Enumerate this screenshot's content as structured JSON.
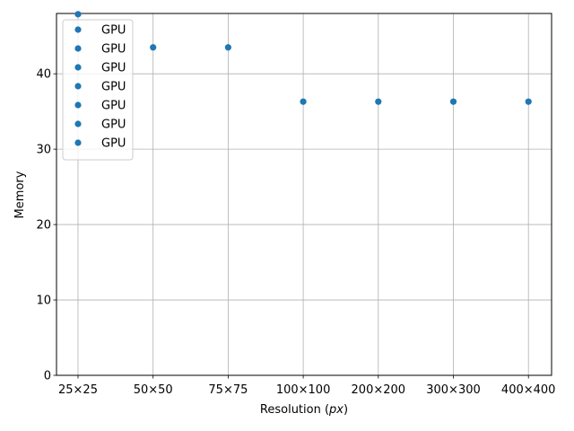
{
  "chart_data": {
    "type": "scatter",
    "categories": [
      "25×25",
      "50×50",
      "75×75",
      "100×100",
      "200×200",
      "300×300",
      "400×400"
    ],
    "series": [
      {
        "name": "GPU",
        "values": [
          47.9,
          43.5,
          43.5,
          36.3,
          36.3,
          36.3,
          36.3
        ]
      }
    ],
    "xlabel_main": "Resolution (",
    "xlabel_math": "px",
    "xlabel_end": ")",
    "ylabel": "Memory",
    "ylim": [
      0,
      48
    ],
    "yticks": [
      0,
      10,
      20,
      30,
      40
    ],
    "grid": true,
    "legend_position": "upper-left",
    "legend_entries": [
      "GPU",
      "GPU",
      "GPU",
      "GPU",
      "GPU",
      "GPU",
      "GPU"
    ],
    "marker_color": "#1f77b4"
  }
}
